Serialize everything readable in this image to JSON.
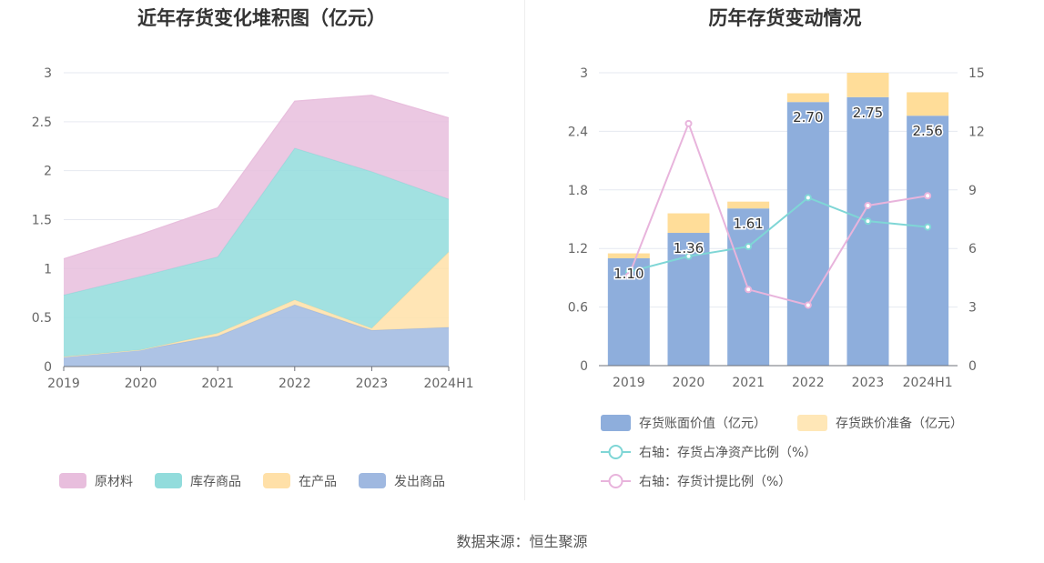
{
  "source": "数据来源：恒生聚源",
  "colors": {
    "raw": "#e8bedd",
    "goods": "#92dcdc",
    "wip": "#ffe0a8",
    "shipped": "#9fb8e0",
    "bar_book": "#8eaedc",
    "bar_reserve": "#ffdd99",
    "line_ratio": "#7fd6d6",
    "line_provision": "#e8b4dc"
  },
  "chart_data": [
    {
      "type": "area",
      "title": "近年存货变化堆积图（亿元）",
      "x": [
        "2019",
        "2020",
        "2021",
        "2022",
        "2023",
        "2024H1"
      ],
      "ylim": [
        0,
        3
      ],
      "yticks": [
        "0",
        "0.5",
        "1",
        "1.5",
        "2",
        "2.5",
        "3"
      ],
      "grid": true,
      "legend_position": "bottom",
      "stacked": true,
      "series": [
        {
          "name": "发出商品",
          "values": [
            0.1,
            0.17,
            0.31,
            0.63,
            0.37,
            0.4
          ]
        },
        {
          "name": "在产品",
          "values": [
            0.0,
            0.0,
            0.03,
            0.05,
            0.02,
            0.77
          ]
        },
        {
          "name": "库存商品",
          "values": [
            0.63,
            0.75,
            0.78,
            1.55,
            1.6,
            0.54
          ]
        },
        {
          "name": "原材料",
          "values": [
            0.37,
            0.43,
            0.5,
            0.48,
            0.78,
            0.83
          ]
        }
      ],
      "legend_order": [
        "原材料",
        "库存商品",
        "在产品",
        "发出商品"
      ]
    },
    {
      "type": "bar",
      "title": "历年存货变动情况",
      "categories": [
        "2019",
        "2020",
        "2021",
        "2022",
        "2023",
        "2024H1"
      ],
      "ylim": [
        0,
        3
      ],
      "yticks": [
        "0",
        "0.6",
        "1.2",
        "1.8",
        "2.4",
        "3"
      ],
      "y2lim": [
        0,
        15
      ],
      "y2ticks": [
        "0",
        "3",
        "6",
        "9",
        "12",
        "15"
      ],
      "grid": true,
      "legend_position": "bottom",
      "stacked": true,
      "series": [
        {
          "name": "存货账面价值（亿元）",
          "values": [
            1.1,
            1.36,
            1.61,
            2.7,
            2.75,
            2.56
          ],
          "labels": [
            "1.10",
            "1.36",
            "1.61",
            "2.70",
            "2.75",
            "2.56"
          ]
        },
        {
          "name": "存货跌价准备（亿元）",
          "values": [
            0.05,
            0.2,
            0.07,
            0.09,
            0.25,
            0.24
          ]
        }
      ],
      "lines": [
        {
          "name": "右轴：存货占净资产比例（%）",
          "axis": "right",
          "values": [
            4.8,
            5.6,
            6.1,
            8.6,
            7.4,
            7.1
          ]
        },
        {
          "name": "右轴：存货计提比例（%）",
          "axis": "right",
          "values": [
            4.6,
            12.4,
            3.9,
            3.1,
            8.2,
            8.7
          ]
        }
      ]
    }
  ]
}
